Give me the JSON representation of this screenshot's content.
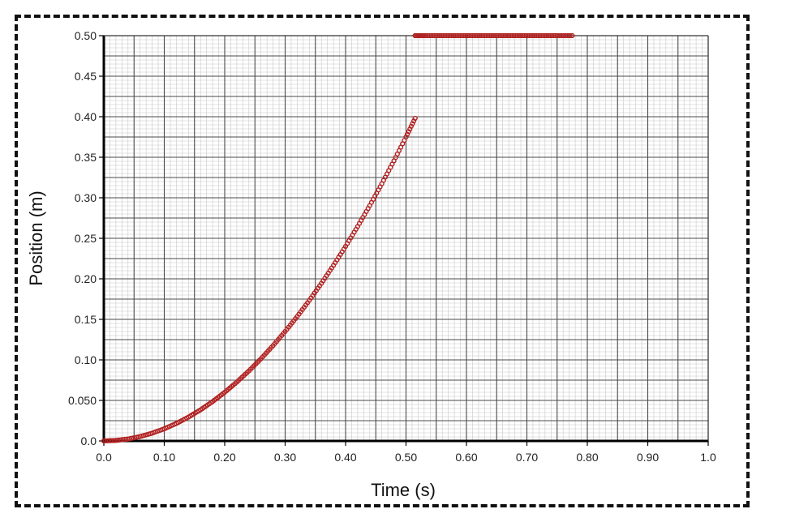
{
  "chart_data": {
    "type": "scatter",
    "xlabel": "Time (s)",
    "ylabel": "Position (m)",
    "xlim": [
      0.0,
      1.0
    ],
    "ylim": [
      0.0,
      0.5
    ],
    "x_ticks": [
      "0.0",
      "0.10",
      "0.20",
      "0.30",
      "0.40",
      "0.50",
      "0.60",
      "0.70",
      "0.80",
      "0.90",
      "1.0"
    ],
    "y_ticks": [
      "0.0",
      "0.050",
      "0.10",
      "0.15",
      "0.20",
      "0.25",
      "0.30",
      "0.35",
      "0.40",
      "0.45",
      "0.50"
    ],
    "grid": true,
    "marker_color": "#b22222",
    "series": [
      {
        "x": [
          0.0,
          0.02,
          0.04,
          0.06,
          0.08,
          0.1,
          0.12,
          0.14,
          0.16,
          0.18,
          0.2,
          0.22,
          0.24,
          0.26,
          0.28,
          0.3,
          0.32,
          0.34,
          0.36,
          0.38,
          0.4,
          0.42,
          0.44,
          0.46,
          0.48,
          0.5,
          0.515
        ],
        "y": [
          0.0,
          0.0006,
          0.0024,
          0.0054,
          0.0096,
          0.015,
          0.0216,
          0.0294,
          0.0384,
          0.0486,
          0.06,
          0.0726,
          0.0864,
          0.1014,
          0.1176,
          0.135,
          0.1536,
          0.1734,
          0.1944,
          0.2166,
          0.24,
          0.2646,
          0.2904,
          0.3174,
          0.3456,
          0.375,
          0.398
        ]
      },
      {
        "x": [
          0.515,
          0.53,
          0.55,
          0.57,
          0.59,
          0.61,
          0.63,
          0.65,
          0.67,
          0.69,
          0.71,
          0.73,
          0.75,
          0.775
        ],
        "y": [
          0.5,
          0.5,
          0.5,
          0.5,
          0.5,
          0.5,
          0.5,
          0.5,
          0.5,
          0.5,
          0.5,
          0.5,
          0.5,
          0.5
        ]
      }
    ]
  }
}
